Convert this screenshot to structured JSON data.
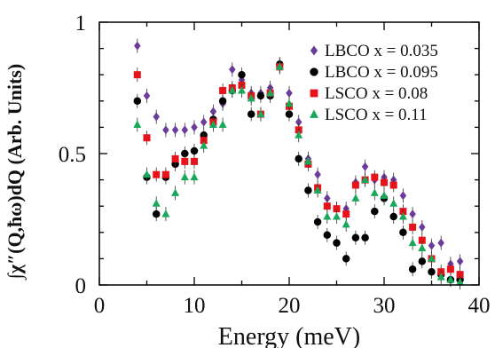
{
  "chart_data": {
    "type": "scatter",
    "title": "",
    "xlabel": "Energy (meV)",
    "ylabel": "∫χ″(Q,ħω)dQ (Arb. Units)",
    "xlim": [
      0,
      40
    ],
    "ylim": [
      0,
      1
    ],
    "xticks": [
      "0",
      "10",
      "20",
      "30",
      "40"
    ],
    "yticks": [
      "0",
      "0.5",
      "1"
    ],
    "grid": false,
    "legend_position": "top-right",
    "series": [
      {
        "name": "LBCO x = 0.035",
        "color": "#6a3d9a",
        "marker": "diamond",
        "x": [
          4,
          5,
          6,
          7,
          8,
          9,
          10,
          11,
          12,
          13,
          14,
          15,
          16,
          17,
          18,
          19,
          20,
          21,
          22,
          23,
          24,
          25,
          26,
          27,
          28,
          29,
          30,
          31,
          32,
          33,
          34,
          35,
          36,
          37,
          38
        ],
        "y": [
          0.91,
          0.72,
          0.64,
          0.59,
          0.59,
          0.59,
          0.6,
          0.62,
          0.66,
          0.69,
          0.82,
          0.78,
          0.73,
          0.73,
          0.75,
          0.84,
          0.73,
          0.62,
          0.48,
          0.42,
          0.33,
          0.29,
          0.29,
          0.39,
          0.45,
          0.4,
          0.41,
          0.4,
          0.34,
          0.27,
          0.22,
          0.15,
          0.16,
          0.08,
          0.09
        ]
      },
      {
        "name": "LBCO x = 0.095",
        "color": "#000000",
        "marker": "circle",
        "x": [
          4,
          5,
          6,
          7,
          8,
          9,
          10,
          11,
          12,
          13,
          14,
          15,
          16,
          17,
          18,
          19,
          20,
          21,
          22,
          23,
          24,
          25,
          26,
          27,
          28,
          29,
          30,
          31,
          32,
          33,
          34,
          35,
          36,
          37,
          38
        ],
        "y": [
          0.7,
          0.41,
          0.27,
          0.41,
          0.46,
          0.5,
          0.51,
          0.57,
          0.63,
          0.7,
          0.74,
          0.8,
          0.65,
          0.72,
          0.72,
          0.84,
          0.65,
          0.48,
          0.36,
          0.24,
          0.19,
          0.16,
          0.1,
          0.18,
          0.18,
          0.28,
          0.33,
          0.26,
          0.2,
          0.06,
          0.09,
          0.05,
          0.04,
          0.02,
          0.02
        ]
      },
      {
        "name": "LSCO x = 0.08",
        "color": "#e8131a",
        "marker": "square",
        "x": [
          4,
          5,
          6,
          7,
          8,
          9,
          10,
          11,
          12,
          13,
          14,
          15,
          16,
          17,
          18,
          19,
          20,
          21,
          22,
          23,
          24,
          25,
          26,
          27,
          28,
          29,
          30,
          31,
          32,
          33,
          34,
          35,
          36,
          37,
          38
        ],
        "y": [
          0.8,
          0.56,
          0.42,
          0.42,
          0.48,
          0.47,
          0.47,
          0.55,
          0.62,
          0.74,
          0.75,
          0.76,
          0.72,
          0.65,
          0.73,
          0.83,
          0.68,
          0.59,
          0.46,
          0.37,
          0.3,
          0.29,
          0.27,
          0.38,
          0.4,
          0.41,
          0.39,
          0.38,
          0.28,
          0.22,
          0.17,
          0.1,
          0.05,
          0.06,
          0.04
        ]
      },
      {
        "name": "LSCO x = 0.11",
        "color": "#19a85a",
        "marker": "triangle",
        "x": [
          4,
          5,
          6,
          7,
          8,
          9,
          10,
          11,
          12,
          13,
          14,
          15,
          16,
          17,
          18,
          19,
          20,
          21,
          22,
          23,
          24,
          25,
          26,
          27,
          28,
          29,
          30,
          31,
          32,
          33,
          34,
          35,
          36,
          37,
          38
        ],
        "y": [
          0.61,
          0.42,
          0.31,
          0.27,
          0.35,
          0.41,
          0.41,
          0.53,
          0.61,
          0.61,
          0.74,
          0.74,
          0.71,
          0.65,
          0.73,
          0.83,
          0.69,
          0.57,
          0.47,
          0.36,
          0.26,
          0.26,
          0.23,
          0.33,
          0.4,
          0.35,
          0.34,
          0.31,
          0.26,
          0.16,
          0.14,
          0.1,
          0.03,
          0.02,
          0.01
        ]
      }
    ]
  }
}
